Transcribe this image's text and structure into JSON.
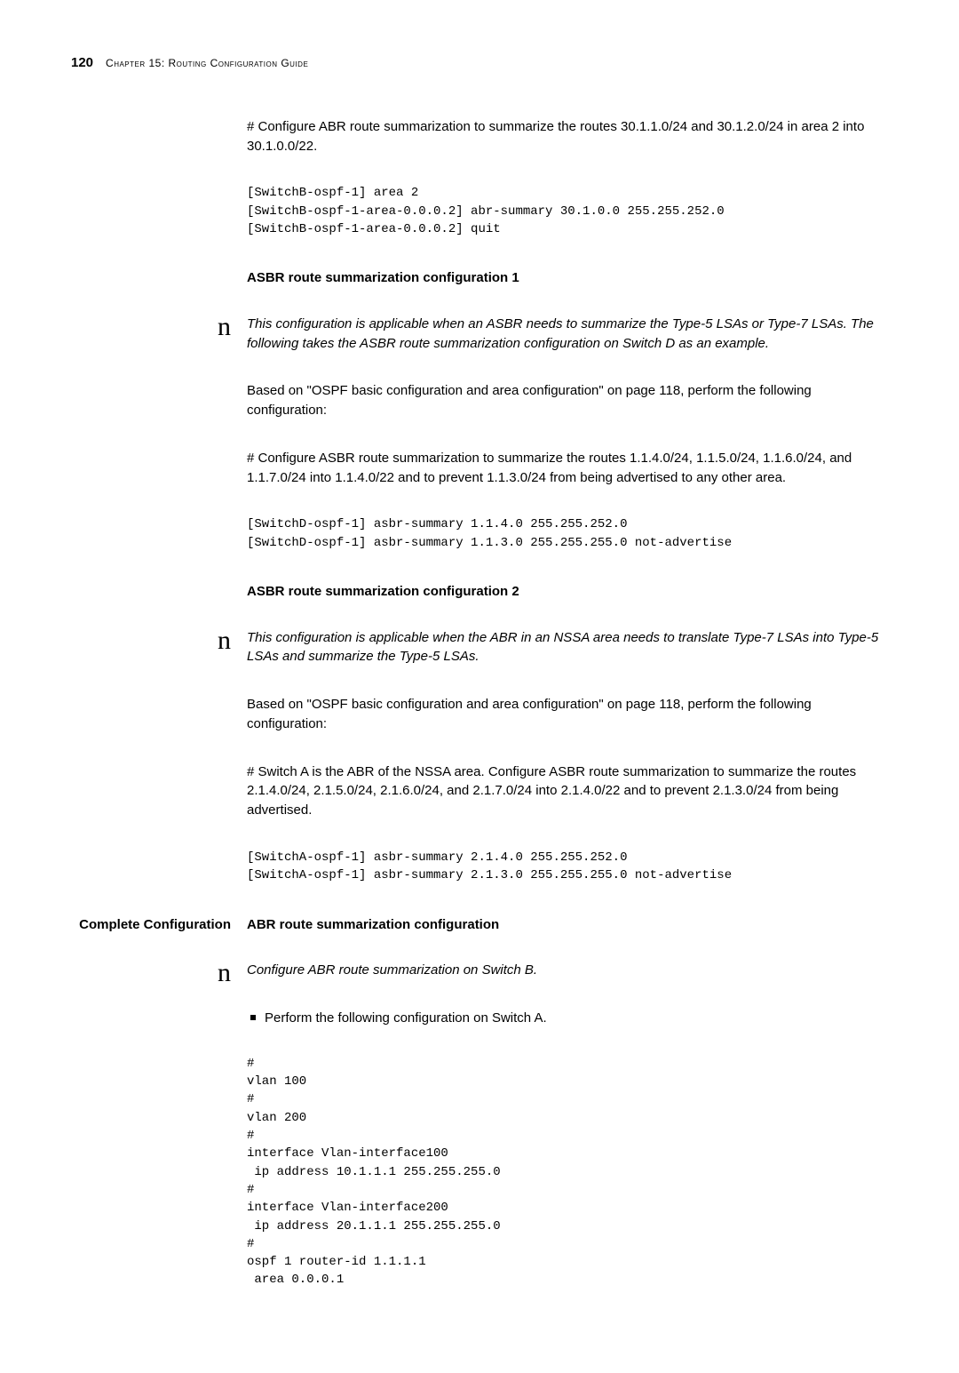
{
  "header": {
    "page_number": "120",
    "chapter": "Chapter 15: Routing Configuration Guide"
  },
  "blocks": [
    {
      "type": "para",
      "text": "# Configure ABR route summarization to summarize the routes 30.1.1.0/24 and 30.1.2.0/24 in area 2 into 30.1.0.0/22."
    },
    {
      "type": "code",
      "text": "[SwitchB-ospf-1] area 2\n[SwitchB-ospf-1-area-0.0.0.2] abr-summary 30.1.0.0 255.255.252.0\n[SwitchB-ospf-1-area-0.0.0.2] quit"
    },
    {
      "type": "heading",
      "text": "ASBR route summarization configuration 1"
    },
    {
      "type": "note-para",
      "text": "This configuration is applicable when an ASBR needs to summarize the Type-5 LSAs or Type-7 LSAs. The following takes the ASBR route summarization configuration on Switch D as an example."
    },
    {
      "type": "para",
      "text": "Based on \"OSPF basic configuration and area configuration\" on page 118, perform the following configuration:"
    },
    {
      "type": "para",
      "text": "# Configure ASBR route summarization to summarize the routes 1.1.4.0/24, 1.1.5.0/24, 1.1.6.0/24, and 1.1.7.0/24 into 1.1.4.0/22 and to prevent 1.1.3.0/24 from being advertised to any other area."
    },
    {
      "type": "code",
      "text": "[SwitchD-ospf-1] asbr-summary 1.1.4.0 255.255.252.0\n[SwitchD-ospf-1] asbr-summary 1.1.3.0 255.255.255.0 not-advertise"
    },
    {
      "type": "heading",
      "text": "ASBR route summarization configuration 2"
    },
    {
      "type": "note-para",
      "text": "This configuration is applicable when the ABR in an NSSA area needs to translate Type-7 LSAs into Type-5 LSAs and summarize the Type-5 LSAs."
    },
    {
      "type": "para",
      "text": "Based on \"OSPF basic configuration and area configuration\" on page 118, perform the following configuration:"
    },
    {
      "type": "para",
      "text": "# Switch A is the ABR of the NSSA area. Configure ASBR route summarization to summarize the routes 2.1.4.0/24, 2.1.5.0/24, 2.1.6.0/24, and 2.1.7.0/24 into 2.1.4.0/22 and to prevent 2.1.3.0/24 from being advertised."
    },
    {
      "type": "code",
      "text": "[SwitchA-ospf-1] asbr-summary 2.1.4.0 255.255.252.0\n[SwitchA-ospf-1] asbr-summary 2.1.3.0 255.255.255.0 not-advertise"
    },
    {
      "type": "section",
      "left": "Complete Configuration",
      "right": "ABR route summarization configuration"
    },
    {
      "type": "note-para",
      "text": "Configure ABR route summarization on Switch B."
    },
    {
      "type": "bullet",
      "text": "Perform the following configuration on Switch A."
    },
    {
      "type": "code",
      "text": "#\nvlan 100\n#\nvlan 200\n#\ninterface Vlan-interface100\n ip address 10.1.1.1 255.255.255.0\n#\ninterface Vlan-interface200\n ip address 20.1.1.1 255.255.255.0\n#\nospf 1 router-id 1.1.1.1\n area 0.0.0.1"
    }
  ]
}
